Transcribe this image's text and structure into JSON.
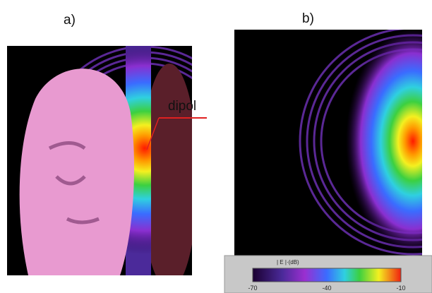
{
  "panels": {
    "a": {
      "label": "a)",
      "annotation": "dipol"
    },
    "b": {
      "label": "b)"
    }
  },
  "colorbar": {
    "label": "| E |·(dB)",
    "ticks": [
      -70,
      -40,
      -10
    ]
  }
}
